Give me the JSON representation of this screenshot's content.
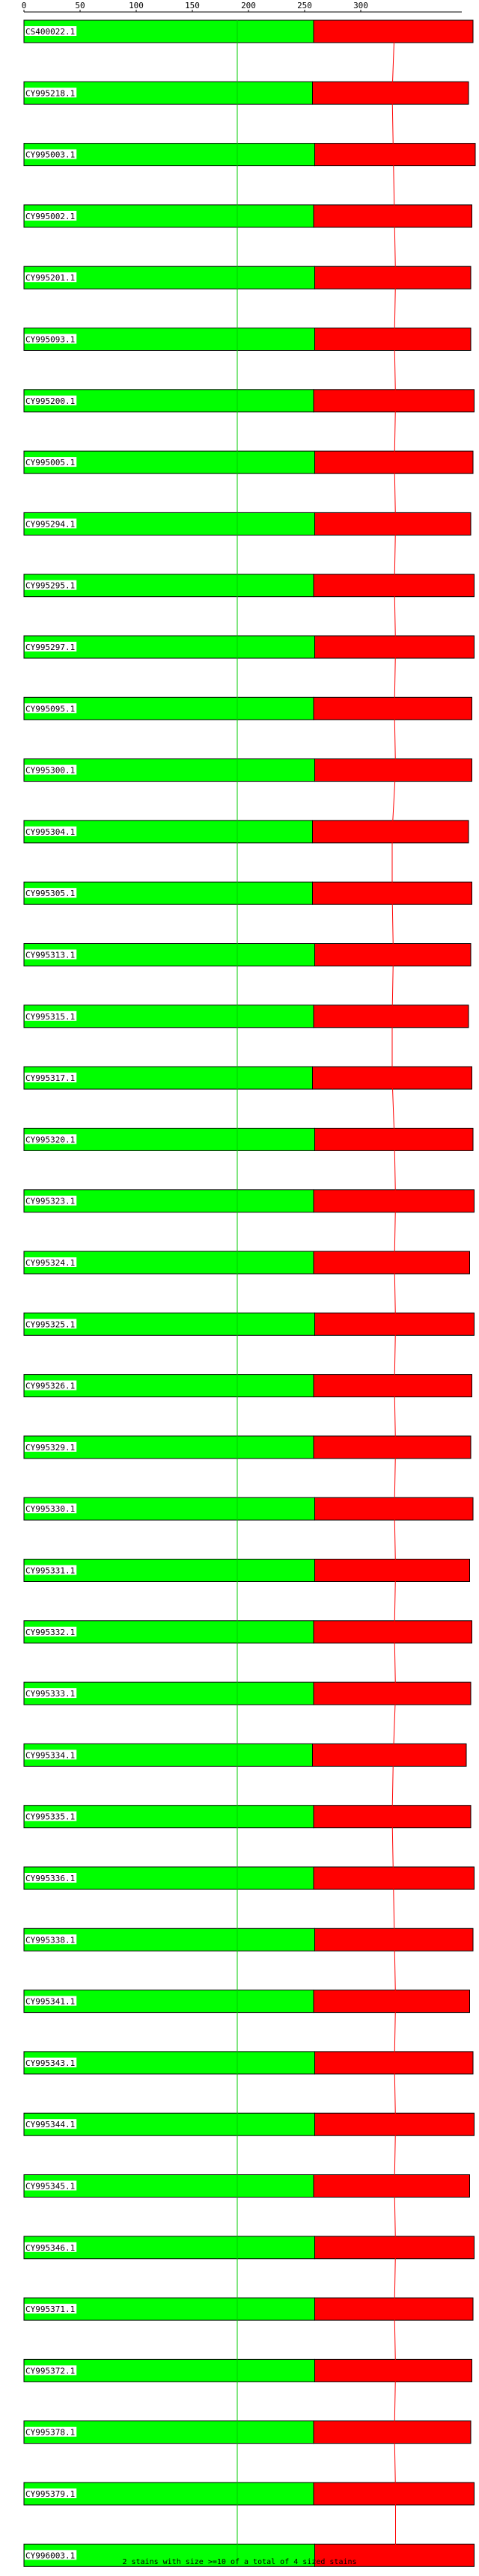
{
  "chart_data": {
    "type": "bar",
    "orientation": "horizontal",
    "stacked": true,
    "xlim": [
      0,
      390
    ],
    "x_ticks": [
      0,
      50,
      100,
      150,
      200,
      250,
      300
    ],
    "reference_line_x": 190,
    "categories": [
      "CS400022.1",
      "CY995218.1",
      "CY995003.1",
      "CY995002.1",
      "CY995201.1",
      "CY995093.1",
      "CY995200.1",
      "CY995005.1",
      "CY995294.1",
      "CY995295.1",
      "CY995297.1",
      "CY995095.1",
      "CY995300.1",
      "CY995304.1",
      "CY995305.1",
      "CY995313.1",
      "CY995315.1",
      "CY995317.1",
      "CY995320.1",
      "CY995323.1",
      "CY995324.1",
      "CY995325.1",
      "CY995326.1",
      "CY995329.1",
      "CY995330.1",
      "CY995331.1",
      "CY995332.1",
      "CY995333.1",
      "CY995334.1",
      "CY995335.1",
      "CY995336.1",
      "CY995338.1",
      "CY995341.1",
      "CY995343.1",
      "CY995344.1",
      "CY995345.1",
      "CY995346.1",
      "CY995371.1",
      "CY995372.1",
      "CY995378.1",
      "CY995379.1",
      "CY996003.1"
    ],
    "series": [
      {
        "color": "#00ff00",
        "values": [
          258,
          257,
          259,
          258,
          259,
          259,
          258,
          259,
          259,
          258,
          259,
          258,
          259,
          257,
          257,
          259,
          258,
          257,
          259,
          258,
          258,
          259,
          258,
          258,
          259,
          259,
          258,
          258,
          257,
          258,
          258,
          259,
          258,
          259,
          259,
          258,
          259,
          259,
          259,
          258,
          258,
          259
        ]
      },
      {
        "color": "#ff0000",
        "values": [
          142,
          139,
          143,
          141,
          139,
          139,
          143,
          141,
          139,
          143,
          142,
          141,
          140,
          139,
          142,
          139,
          138,
          142,
          141,
          143,
          139,
          142,
          141,
          140,
          141,
          138,
          141,
          140,
          137,
          140,
          143,
          141,
          139,
          141,
          142,
          139,
          142,
          141,
          140,
          140,
          143,
          142
        ]
      }
    ],
    "line_series": {
      "color": "#ff0000",
      "values": [
        330,
        328,
        329,
        330,
        331,
        330,
        331,
        330,
        331,
        330,
        331,
        330,
        331,
        328,
        328,
        329,
        328,
        328,
        330,
        331,
        330,
        331,
        330,
        331,
        330,
        331,
        330,
        331,
        329,
        328,
        329,
        330,
        331,
        330,
        331,
        330,
        331,
        330,
        331,
        330,
        331,
        331
      ]
    }
  },
  "footer": {
    "summary": "2 stains with size >=10 of a total of 4 sized stains"
  }
}
